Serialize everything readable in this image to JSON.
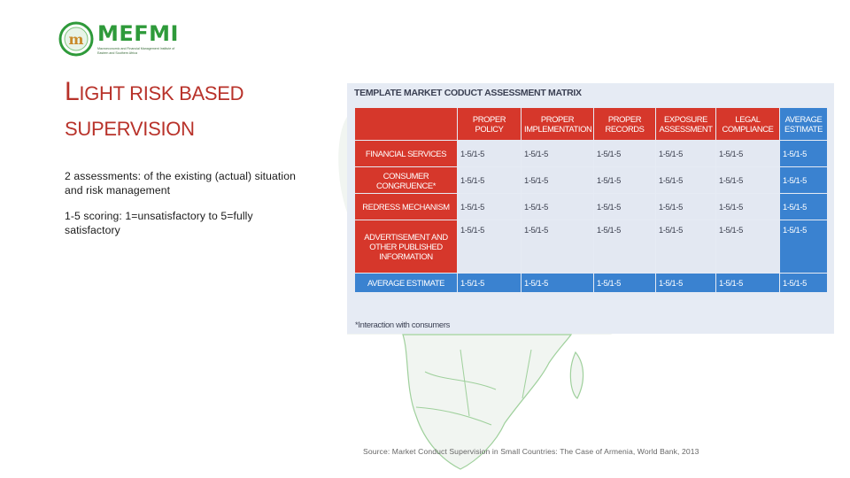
{
  "logo": {
    "word": "MEFMI",
    "tagline": "Macroeconomic and Financial Management Institute of Eastern and Southern Africa"
  },
  "title": {
    "first_letter": "L",
    "line1_rest": "IGHT RISK BASED",
    "line2": "SUPERVISION"
  },
  "body": {
    "para1": "2 assessments: of the existing (actual) situation and risk management",
    "para2": "1-5 scoring: 1=unsatisfactory to 5=fully satisfactory"
  },
  "matrix": {
    "title": "TEMPLATE MARKET CODUCT ASSESSMENT MATRIX",
    "columns": [
      [
        "PROPER POLICY"
      ],
      [
        "PROPER",
        "IMPLEMENTATION"
      ],
      [
        "PROPER",
        "RECORDS"
      ],
      [
        "EXPOSURE",
        "ASSESSMENT"
      ],
      [
        "LEGAL",
        "COMPLIANCE"
      ],
      [
        "AVERAGE",
        "ESTIMATE"
      ]
    ],
    "rows": [
      {
        "label": [
          "FINANCIAL SERVICES"
        ],
        "values": [
          "1-5/1-5",
          "1-5/1-5",
          "1-5/1-5",
          "1-5/1-5",
          "1-5/1-5",
          "1-5/1-5"
        ]
      },
      {
        "label": [
          "CONSUMER CONGRUENCE*"
        ],
        "values": [
          "1-5/1-5",
          "1-5/1-5",
          "1-5/1-5",
          "1-5/1-5",
          "1-5/1-5",
          "1-5/1-5"
        ]
      },
      {
        "label": [
          "REDRESS MECHANISM"
        ],
        "values": [
          "1-5/1-5",
          "1-5/1-5",
          "1-5/1-5",
          "1-5/1-5",
          "1-5/1-5",
          "1-5/1-5"
        ]
      },
      {
        "label": [
          "ADVERTISEMENT AND",
          "OTHER PUBLISHED",
          "INFORMATION"
        ],
        "values": [
          "1-5/1-5",
          "1-5/1-5",
          "1-5/1-5",
          "1-5/1-5",
          "1-5/1-5",
          "1-5/1-5"
        ]
      }
    ],
    "total": {
      "label": [
        "AVERAGE ESTIMATE"
      ],
      "values": [
        "1-5/1-5",
        "1-5/1-5",
        "1-5/1-5",
        "1-5/1-5",
        "1-5/1-5",
        "1-5/1-5"
      ]
    },
    "footnote": "*Interaction with consumers"
  },
  "source": "Source: Market Conduct Supervision in Small Countries: The Case of Armenia, World Bank, 2013",
  "colors": {
    "title_red": "#b8322a",
    "matrix_red": "#d6372b",
    "matrix_blue": "#3a82d0",
    "logo_green": "#2e9a3a",
    "map_green": "#8dca8b"
  }
}
